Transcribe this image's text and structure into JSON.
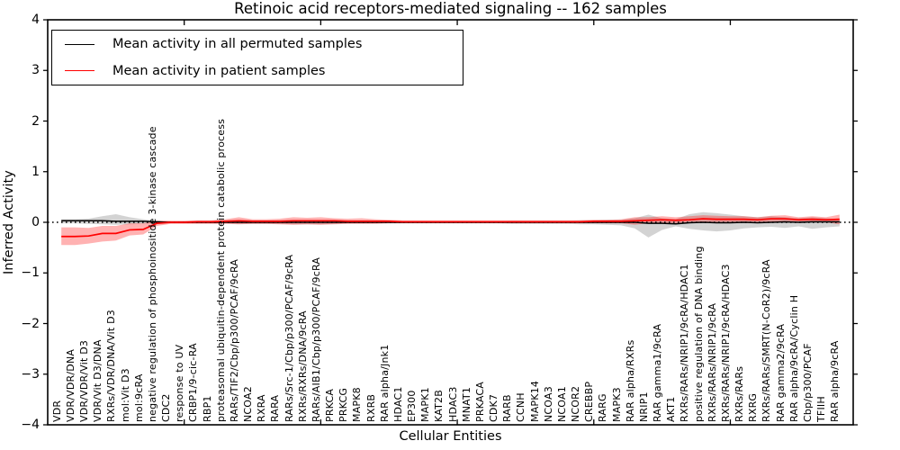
{
  "chart_data": {
    "type": "line",
    "title": "Retinoic acid receptors-mediated signaling -- 162 samples",
    "xlabel": "Cellular Entities",
    "ylabel": "Inferred Activity",
    "ylim": [
      -4,
      4
    ],
    "yticks": [
      -4,
      -3,
      -2,
      -1,
      0,
      1,
      2,
      3,
      4
    ],
    "xticks_major": [
      10,
      20,
      30,
      40,
      50
    ],
    "grid": false,
    "legend_position": "upper left",
    "zero_line": {
      "style": "dotted",
      "color": "#000000",
      "y": 0
    },
    "colors": {
      "permuted_line": "#000000",
      "patient_line": "#ff0000",
      "permuted_band": "rgba(128,128,128,0.35)",
      "patient_band": "rgba(255,0,0,0.30)"
    },
    "categories": [
      "VDR",
      "VDR/VDR/DNA",
      "VDR/VDR/Vit D3",
      "VDR/Vit D3/DNA",
      "RXRs/VDR/DNA/Vit D3",
      "mol:Vit D3",
      "mol:9cRA",
      "negative regulation of phosphoinositide 3-kinase cascade",
      "CDC2",
      "response to UV",
      "CRBP1/9-cic-RA",
      "RBP1",
      "proteasomal ubiquitin-dependent protein catabolic process",
      "RARs/TIF2/Cbp/p300/PCAF/9cRA",
      "NCOA2",
      "RXRA",
      "RARA",
      "RARs/Src-1/Cbp/p300/PCAF/9cRA",
      "RXRs/RXRs/DNA/9cRA",
      "RARs/AIB1/Cbp/p300/PCAF/9cRA",
      "PRKCA",
      "PRKCG",
      "MAPK8",
      "RXRB",
      "RAR alpha/Jnk1",
      "HDAC1",
      "EP300",
      "MAPK1",
      "KAT2B",
      "HDAC3",
      "MNAT1",
      "PRKACA",
      "CDK7",
      "RARB",
      "CCNH",
      "MAPK14",
      "NCOA3",
      "NCOA1",
      "NCOR2",
      "CREBBP",
      "RARG",
      "MAPK3",
      "RAR alpha/RXRs",
      "NRIP1",
      "RAR gamma1/9cRA",
      "AKT1",
      "RXRs/RARs/NRIP1/9cRA/HDAC1",
      "positive regulation of DNA binding",
      "RXRs/RARs/NRIP1/9cRA",
      "RXRs/RARs/NRIP1/9cRA/HDAC3",
      "RXRs/RARs",
      "RXRG",
      "RXRs/RARs/SMRT(N-CoR2)/9cRA",
      "RAR gamma2/9cRA",
      "RAR alpha/9cRA/Cyclin H",
      "Cbp/p300/PCAF",
      "TFIIH",
      "RAR alpha/9cRA"
    ],
    "series": [
      {
        "name": "Mean activity in all permuted samples",
        "color": "#000000",
        "band_fill": "rgba(128,128,128,0.35)",
        "values": [
          0.03,
          0.03,
          0.03,
          0.03,
          0.02,
          0.02,
          0.02,
          0.01,
          0,
          0,
          0,
          0,
          0,
          0,
          0,
          0,
          0,
          0,
          0,
          0,
          0,
          0,
          0,
          0,
          0,
          0,
          0,
          0,
          0,
          0,
          0,
          0,
          0,
          0,
          0,
          0,
          0,
          0,
          0,
          0,
          0,
          0,
          0,
          -0.02,
          -0.02,
          -0.03,
          -0.01,
          0,
          -0.01,
          -0.01,
          0,
          -0.01,
          0,
          0.01,
          0,
          0.01,
          0.01,
          0.01
        ],
        "band_upper": [
          0.06,
          0.06,
          0.07,
          0.12,
          0.16,
          0.1,
          0.06,
          0.03,
          0.02,
          0.02,
          0.03,
          0.03,
          0.03,
          0.04,
          0.03,
          0.03,
          0.03,
          0.04,
          0.04,
          0.04,
          0.03,
          0.03,
          0.03,
          0.03,
          0.03,
          0.02,
          0.02,
          0.02,
          0.02,
          0.02,
          0.02,
          0.02,
          0.02,
          0.03,
          0.03,
          0.03,
          0.03,
          0.03,
          0.04,
          0.04,
          0.05,
          0.05,
          0.08,
          0.15,
          0.08,
          0.06,
          0.16,
          0.2,
          0.18,
          0.15,
          0.12,
          0.1,
          0.12,
          0.1,
          0.08,
          0.1,
          0.08,
          0.06
        ],
        "band_lower": [
          -0.02,
          -0.02,
          -0.03,
          -0.04,
          -0.05,
          -0.04,
          -0.03,
          -0.02,
          -0.02,
          -0.02,
          -0.02,
          -0.02,
          -0.02,
          -0.03,
          -0.03,
          -0.03,
          -0.03,
          -0.04,
          -0.04,
          -0.04,
          -0.03,
          -0.02,
          -0.02,
          -0.02,
          -0.02,
          -0.02,
          -0.02,
          -0.02,
          -0.02,
          -0.02,
          -0.02,
          -0.02,
          -0.02,
          -0.03,
          -0.03,
          -0.03,
          -0.03,
          -0.03,
          -0.04,
          -0.04,
          -0.05,
          -0.06,
          -0.12,
          -0.3,
          -0.15,
          -0.08,
          -0.13,
          -0.16,
          -0.18,
          -0.16,
          -0.12,
          -0.1,
          -0.09,
          -0.11,
          -0.08,
          -0.13,
          -0.1,
          -0.08
        ]
      },
      {
        "name": "Mean activity in patient samples",
        "color": "#ff0000",
        "band_fill": "rgba(255,0,0,0.30)",
        "values": [
          -0.28,
          -0.28,
          -0.27,
          -0.22,
          -0.22,
          -0.15,
          -0.14,
          -0.02,
          0,
          0,
          0.01,
          0.01,
          0.02,
          0.03,
          0.02,
          0.02,
          0.02,
          0.03,
          0.03,
          0.03,
          0.03,
          0.02,
          0.02,
          0.02,
          0.02,
          0.01,
          0.01,
          0.01,
          0.01,
          0.01,
          0.01,
          0.01,
          0.01,
          0.01,
          0.01,
          0.01,
          0.01,
          0.01,
          0.01,
          0.02,
          0.02,
          0.02,
          0.03,
          0.04,
          0.05,
          0.04,
          0.05,
          0.07,
          0.06,
          0.06,
          0.06,
          0.05,
          0.07,
          0.07,
          0.05,
          0.06,
          0.05,
          0.06
        ],
        "band_upper": [
          -0.1,
          -0.1,
          -0.11,
          -0.07,
          -0.07,
          -0.02,
          -0.02,
          0.03,
          0.03,
          0.03,
          0.04,
          0.04,
          0.06,
          0.1,
          0.06,
          0.06,
          0.07,
          0.1,
          0.09,
          0.1,
          0.08,
          0.07,
          0.08,
          0.06,
          0.05,
          0.04,
          0.04,
          0.04,
          0.04,
          0.04,
          0.04,
          0.04,
          0.04,
          0.04,
          0.04,
          0.04,
          0.04,
          0.04,
          0.04,
          0.05,
          0.05,
          0.06,
          0.1,
          0.1,
          0.12,
          0.1,
          0.12,
          0.14,
          0.13,
          0.12,
          0.12,
          0.1,
          0.13,
          0.14,
          0.1,
          0.12,
          0.1,
          0.15
        ],
        "band_lower": [
          -0.45,
          -0.45,
          -0.42,
          -0.38,
          -0.36,
          -0.26,
          -0.24,
          -0.07,
          -0.03,
          -0.03,
          -0.03,
          -0.03,
          -0.03,
          -0.04,
          -0.03,
          -0.03,
          -0.04,
          -0.05,
          -0.04,
          -0.05,
          -0.04,
          -0.03,
          -0.03,
          -0.03,
          -0.02,
          -0.02,
          -0.02,
          -0.02,
          -0.02,
          -0.02,
          -0.02,
          -0.02,
          -0.02,
          -0.02,
          -0.02,
          -0.02,
          -0.02,
          -0.02,
          -0.02,
          -0.02,
          -0.02,
          -0.02,
          -0.05,
          -0.02,
          -0.01,
          -0.02,
          -0.01,
          0,
          0,
          0,
          0.01,
          0,
          0.01,
          0.01,
          0,
          0,
          0,
          -0.04
        ]
      }
    ]
  },
  "legend": {
    "items": [
      {
        "label": "Mean activity in all permuted samples"
      },
      {
        "label": "Mean activity in patient samples"
      }
    ]
  }
}
